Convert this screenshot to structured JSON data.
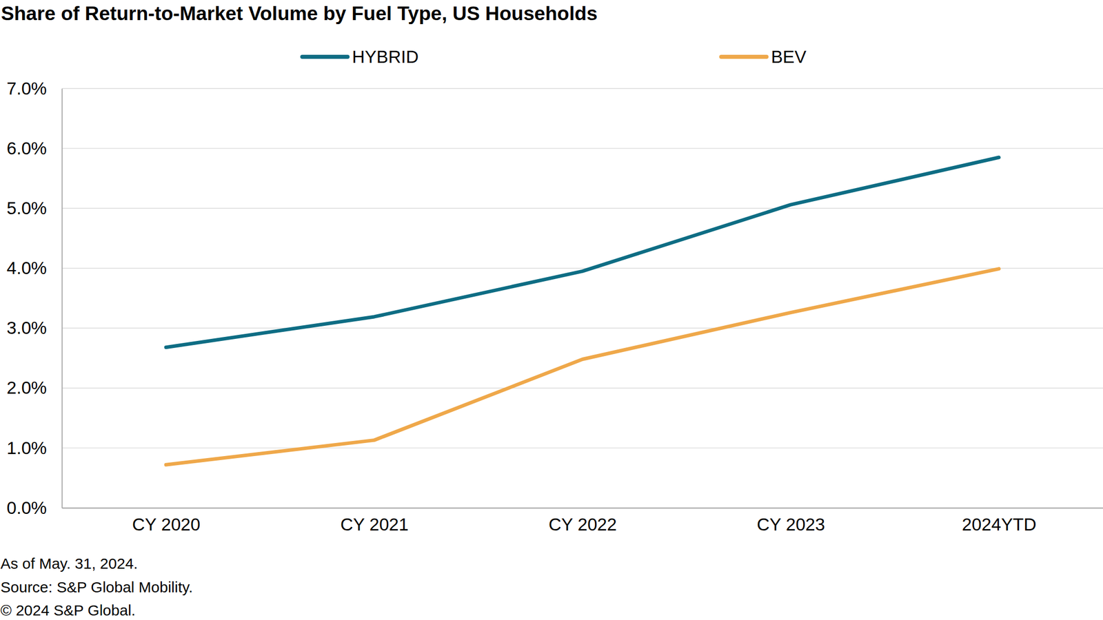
{
  "chart_data": {
    "type": "line",
    "title": "Share of Return-to-Market Volume by Fuel Type, US Households",
    "categories": [
      "CY 2020",
      "CY 2021",
      "CY 2022",
      "CY 2023",
      "2024YTD"
    ],
    "series": [
      {
        "name": "HYBRID",
        "color": "#0e6d84",
        "values": [
          2.68,
          3.19,
          3.95,
          5.06,
          5.85
        ]
      },
      {
        "name": "BEV",
        "color": "#efa84a",
        "values": [
          0.72,
          1.13,
          2.48,
          3.26,
          3.99
        ]
      }
    ],
    "ylim": [
      0,
      7
    ],
    "yticks": [
      {
        "value": 0,
        "label": "0.0%"
      },
      {
        "value": 1,
        "label": "1.0%"
      },
      {
        "value": 2,
        "label": "2.0%"
      },
      {
        "value": 3,
        "label": "3.0%"
      },
      {
        "value": 4,
        "label": "4.0%"
      },
      {
        "value": 5,
        "label": "5.0%"
      },
      {
        "value": 6,
        "label": "6.0%"
      },
      {
        "value": 7,
        "label": "7.0%"
      }
    ],
    "grid": true,
    "legend": "top",
    "annotations": [
      "As of May. 31, 2024.",
      "Source: S&P Global Mobility.",
      "© 2024 S&P Global."
    ]
  }
}
